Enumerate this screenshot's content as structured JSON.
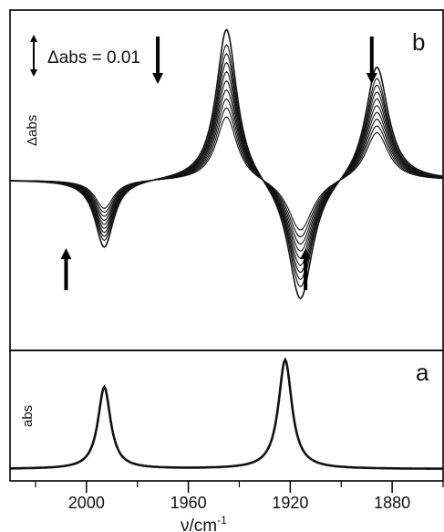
{
  "chart_data": [
    {
      "panel": "b",
      "type": "line",
      "ylabel": "Δabs",
      "scale_bar_label": "Δabs = 0.01",
      "scale_bar_value": 0.01,
      "x_reversed": true,
      "xlim": [
        2030,
        1860
      ],
      "ylim": [
        -0.031,
        0.031
      ],
      "peaks": [
        {
          "x": 1993,
          "width": 4.5,
          "sign": -1,
          "max_amplitude": 0.0124
        },
        {
          "x": 1945,
          "width": 5.0,
          "sign": 1,
          "max_amplitude": 0.0283
        },
        {
          "x": 1916,
          "width": 6.0,
          "sign": -1,
          "max_amplitude": 0.023
        },
        {
          "x": 1886,
          "width": 5.5,
          "sign": 1,
          "max_amplitude": 0.0213
        }
      ],
      "series_scales": [
        0.42,
        0.48,
        0.54,
        0.6,
        0.66,
        0.72,
        0.78,
        0.84,
        0.9,
        1.0
      ],
      "arrows": [
        {
          "x": 1972,
          "direction": "down"
        },
        {
          "x": 1888,
          "direction": "down"
        },
        {
          "x": 2008,
          "direction": "up"
        },
        {
          "x": 1914,
          "direction": "up"
        }
      ]
    },
    {
      "panel": "a",
      "type": "line",
      "ylabel": "abs",
      "x_reversed": true,
      "xlim": [
        2030,
        1860
      ],
      "ylim": [
        -0.1,
        1.0
      ],
      "peaks": [
        {
          "x": 1993,
          "width": 3.0,
          "height": 0.69
        },
        {
          "x": 1922,
          "width": 3.2,
          "height": 0.92
        }
      ],
      "baseline": 0
    }
  ],
  "xaxis": {
    "label": "ν/cm",
    "label_superscript": "-1",
    "ticks": [
      {
        "value": 2000,
        "label": "2000"
      },
      {
        "value": 1960,
        "label": "1960"
      },
      {
        "value": 1920,
        "label": "1920"
      },
      {
        "value": 1880,
        "label": "1880"
      }
    ]
  }
}
